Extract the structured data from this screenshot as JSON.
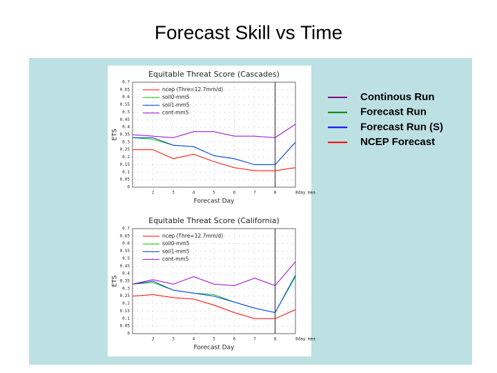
{
  "title": "Forecast Skill vs Time",
  "legend": [
    {
      "name": "Continous Run",
      "color": "#800080"
    },
    {
      "name": "Forecast Run",
      "color": "#008000"
    },
    {
      "name": "Forecast Run (S)",
      "color": "#0000ff"
    },
    {
      "name": "NCEP Forecast",
      "color": "#ff0000"
    }
  ],
  "chart_data": [
    {
      "type": "line",
      "title": "Equitable Threat Score (Cascades)",
      "x_label": "Forecast Day",
      "y_label": "ETS",
      "x": [
        1,
        2,
        3,
        4,
        5,
        6,
        7,
        8,
        9
      ],
      "xlim": [
        1,
        9
      ],
      "xticks": [
        2,
        3,
        4,
        5,
        6,
        7,
        8,
        {
          "value": 9,
          "label": "8day mea"
        }
      ],
      "ylim": [
        0,
        0.7
      ],
      "yticks": [
        0,
        0.05,
        0.1,
        0.15,
        0.2,
        0.25,
        0.3,
        0.35,
        0.4,
        0.45,
        0.5,
        0.55,
        0.6,
        0.65,
        0.7
      ],
      "grid": true,
      "reference_line_x": 8,
      "series": [
        {
          "name": "ncep (Thre=12.7mm/d)",
          "color": "#ff0000",
          "values": [
            0.25,
            0.25,
            0.19,
            0.22,
            0.17,
            0.13,
            0.11,
            0.11,
            0.13
          ]
        },
        {
          "name": "soil0-mm5",
          "color": "#00cc00",
          "values": [
            0.33,
            0.32,
            0.28,
            0.27,
            0.21,
            0.19,
            0.15,
            0.15,
            0.3
          ]
        },
        {
          "name": "soil1-mm5",
          "color": "#0033ff",
          "values": [
            0.33,
            0.33,
            0.28,
            0.27,
            0.21,
            0.19,
            0.15,
            0.15,
            0.3
          ]
        },
        {
          "name": "cont-mm5",
          "color": "#9900cc",
          "values": [
            0.35,
            0.34,
            0.33,
            0.37,
            0.37,
            0.34,
            0.34,
            0.33,
            0.42
          ]
        }
      ]
    },
    {
      "type": "line",
      "title": "Equitable Threat Score (California)",
      "x_label": "Forecast Day",
      "y_label": "ETS",
      "x": [
        1,
        2,
        3,
        4,
        5,
        6,
        7,
        8,
        9
      ],
      "xlim": [
        1,
        9
      ],
      "xticks": [
        2,
        3,
        4,
        5,
        6,
        7,
        8,
        {
          "value": 9,
          "label": "8day mea"
        }
      ],
      "ylim": [
        0,
        0.7
      ],
      "yticks": [
        0,
        0.05,
        0.1,
        0.15,
        0.2,
        0.25,
        0.3,
        0.35,
        0.4,
        0.45,
        0.5,
        0.55,
        0.6,
        0.65,
        0.7
      ],
      "grid": true,
      "reference_line_x": 8,
      "series": [
        {
          "name": "ncep (Thre=12.7mm/d)",
          "color": "#ff0000",
          "values": [
            0.25,
            0.26,
            0.24,
            0.23,
            0.19,
            0.14,
            0.1,
            0.1,
            0.16
          ]
        },
        {
          "name": "soil0-mm5",
          "color": "#00cc00",
          "values": [
            0.33,
            0.34,
            0.29,
            0.27,
            0.26,
            0.21,
            0.17,
            0.14,
            0.38
          ]
        },
        {
          "name": "soil1-mm5",
          "color": "#0033ff",
          "values": [
            0.33,
            0.35,
            0.29,
            0.27,
            0.25,
            0.21,
            0.17,
            0.14,
            0.39
          ]
        },
        {
          "name": "cont-mm5",
          "color": "#9900cc",
          "values": [
            0.33,
            0.36,
            0.33,
            0.38,
            0.33,
            0.32,
            0.37,
            0.32,
            0.48
          ]
        }
      ]
    }
  ]
}
